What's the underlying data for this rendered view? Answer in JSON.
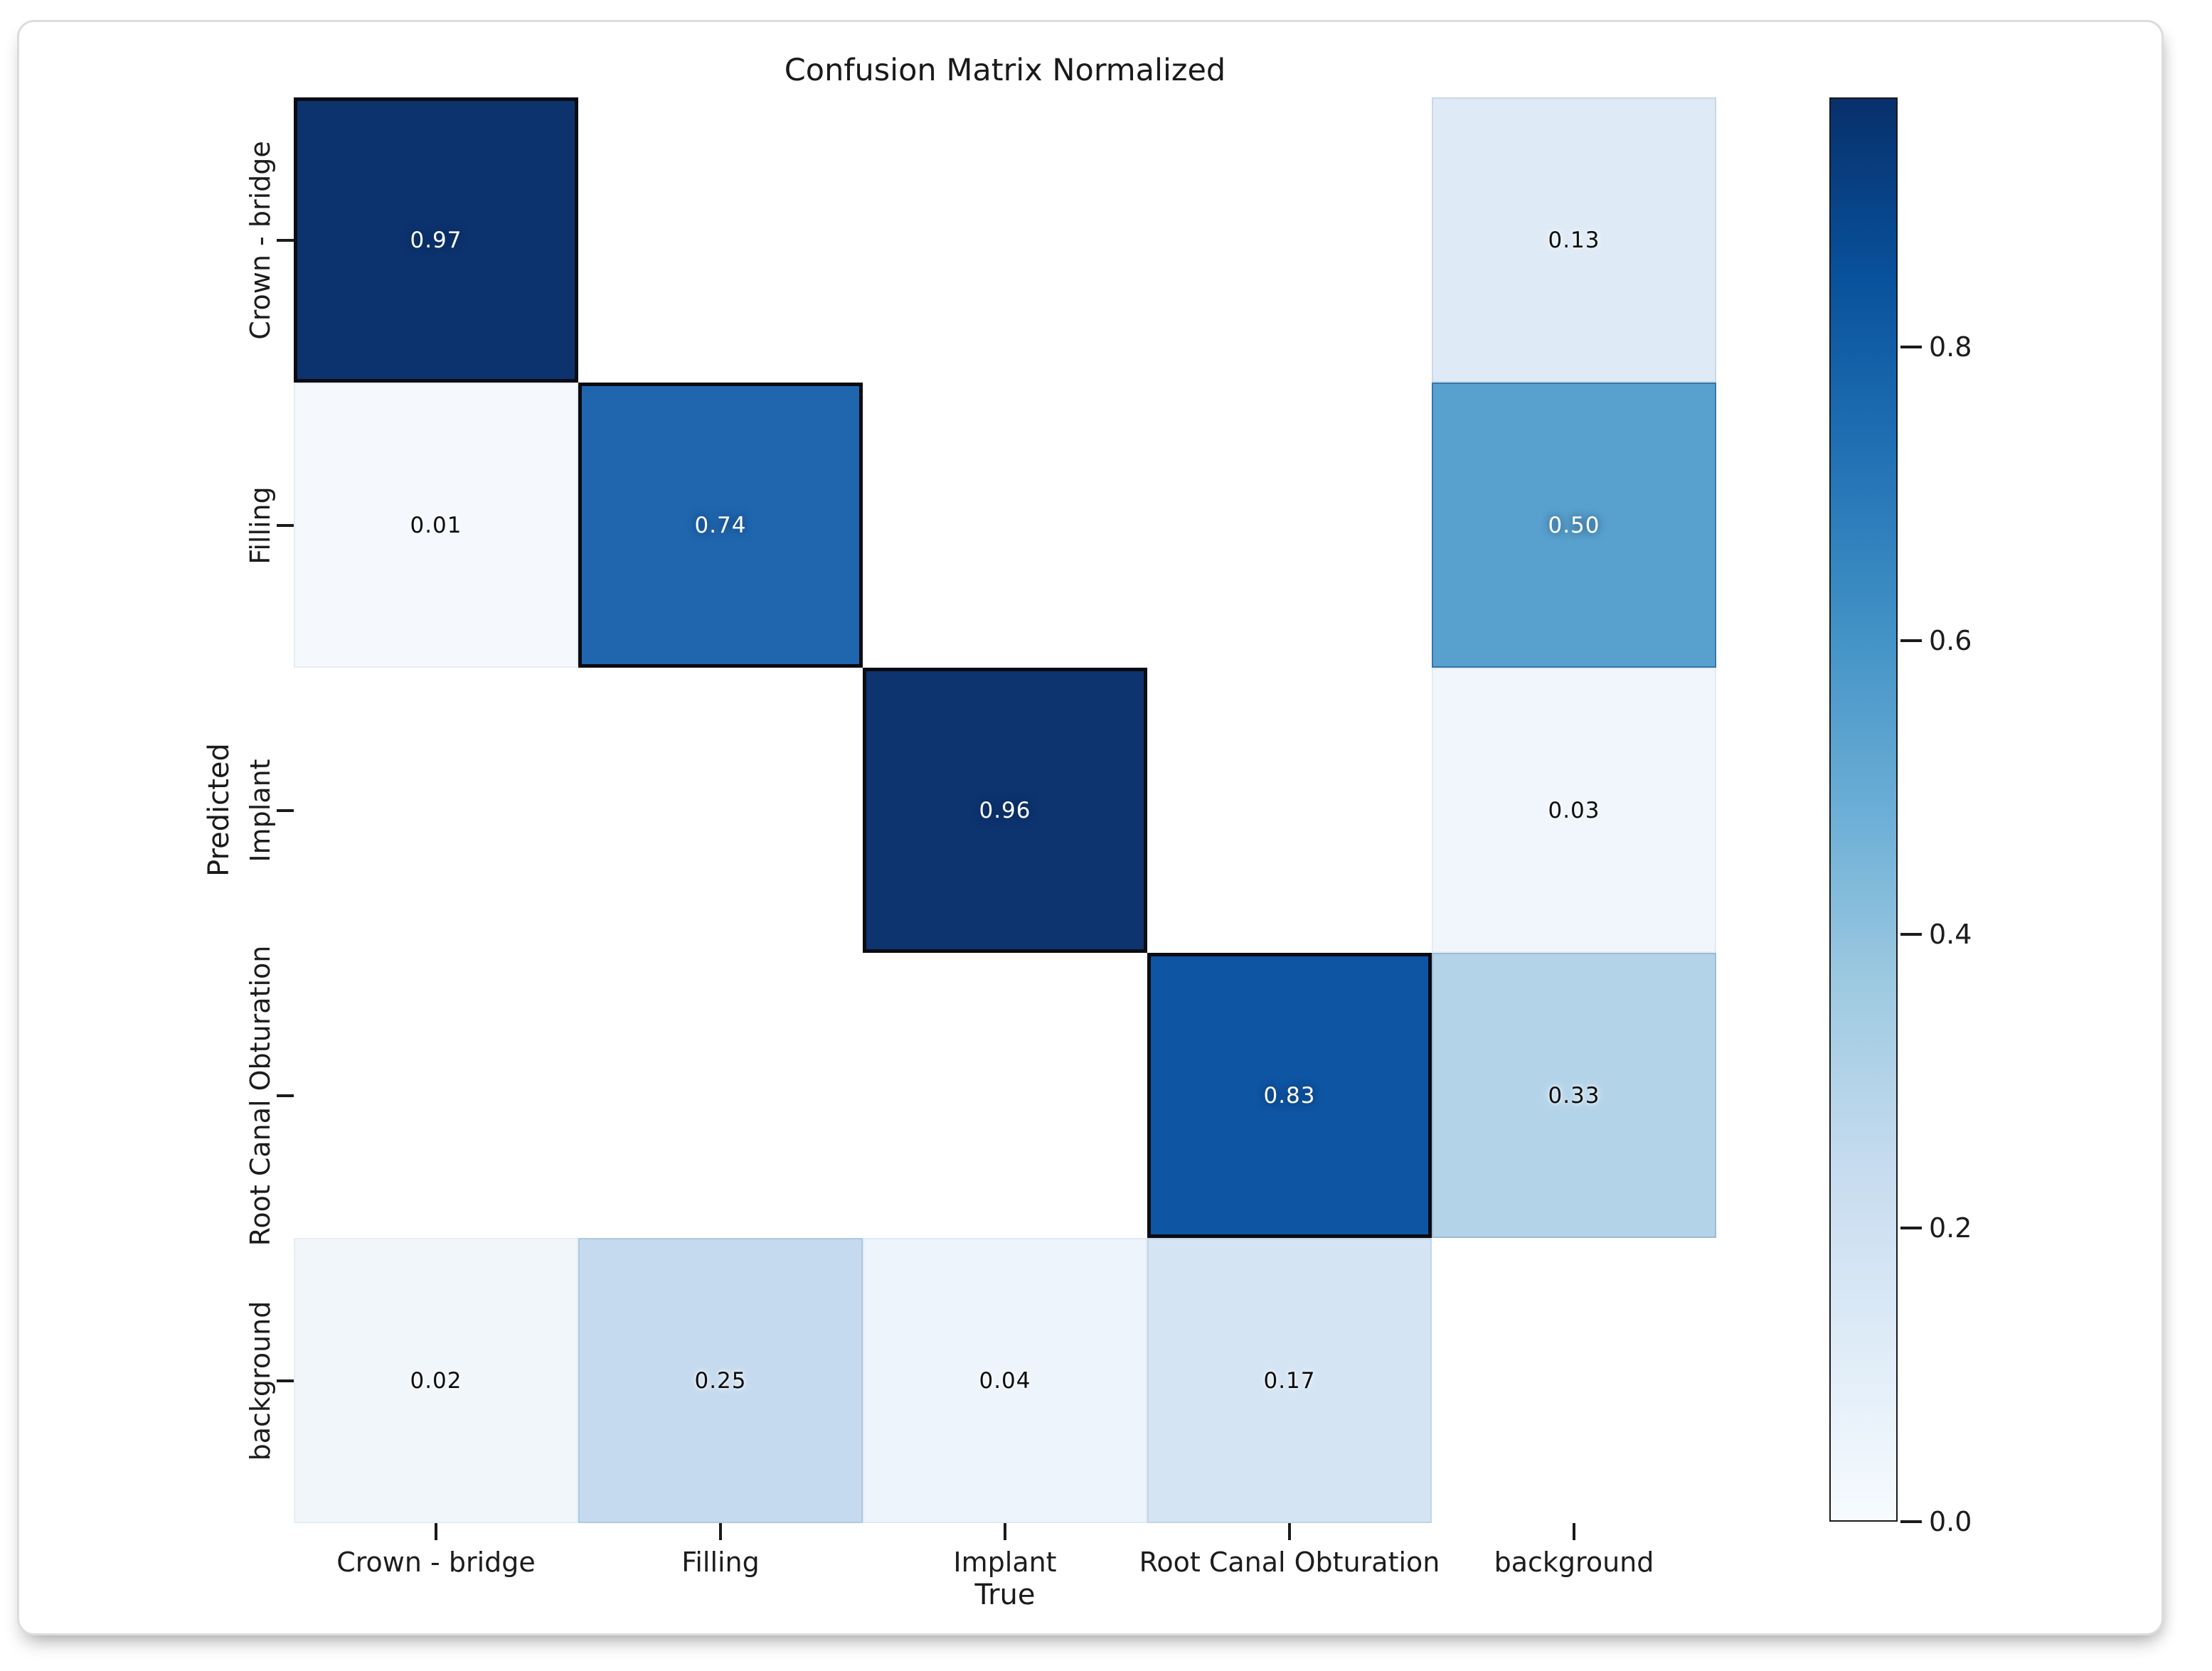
{
  "figure": {
    "frame_border_color": "#dcdcdc",
    "background": "#ffffff"
  },
  "chart_data": {
    "type": "heatmap",
    "title": "Confusion Matrix Normalized",
    "xlabel": "True",
    "ylabel": "Predicted",
    "categories": [
      "Crown - bridge",
      "Filling",
      "Implant",
      "Root Canal Obturation",
      "background"
    ],
    "matrix": [
      [
        0.97,
        null,
        null,
        null,
        0.13
      ],
      [
        0.01,
        0.74,
        null,
        null,
        0.5
      ],
      [
        null,
        null,
        0.96,
        null,
        0.03
      ],
      [
        null,
        null,
        null,
        0.83,
        0.33
      ],
      [
        0.02,
        0.25,
        0.04,
        0.17,
        null
      ]
    ],
    "cells": [
      {
        "row": 0,
        "col": 0,
        "label": "0.97",
        "fill": "#0c336e",
        "text": "#ffffff",
        "diag": true
      },
      {
        "row": 0,
        "col": 4,
        "label": "0.13",
        "fill": "#deeaf6",
        "border": "#c9d8e6",
        "text": "#0d0d0d",
        "diag": false
      },
      {
        "row": 1,
        "col": 0,
        "label": "0.01",
        "fill": "#f5f9fd",
        "border": "#e4ecf3",
        "text": "#0d0d0d",
        "diag": false
      },
      {
        "row": 1,
        "col": 1,
        "label": "0.74",
        "fill": "#1f66af",
        "text": "#ffffff",
        "diag": true
      },
      {
        "row": 1,
        "col": 4,
        "label": "0.50",
        "fill": "#58a1ce",
        "border": "#3576ab",
        "text": "#ffffff",
        "diag": false
      },
      {
        "row": 2,
        "col": 2,
        "label": "0.96",
        "fill": "#0d346f",
        "text": "#ffffff",
        "diag": true
      },
      {
        "row": 2,
        "col": 4,
        "label": "0.03",
        "fill": "#f0f6fc",
        "border": "#e4ecf3",
        "text": "#0d0d0d",
        "diag": false
      },
      {
        "row": 3,
        "col": 3,
        "label": "0.83",
        "fill": "#0e55a3",
        "text": "#ffffff",
        "diag": true
      },
      {
        "row": 3,
        "col": 4,
        "label": "0.33",
        "fill": "#b3d3e8",
        "border": "#9fbcd3",
        "text": "#0d0d0d",
        "diag": false
      },
      {
        "row": 4,
        "col": 0,
        "label": "0.02",
        "fill": "#f1f6fb",
        "border": "#e6edf4",
        "text": "#0d0d0d",
        "diag": false
      },
      {
        "row": 4,
        "col": 1,
        "label": "0.25",
        "fill": "#c5daee",
        "border": "#b0c9e0",
        "text": "#0d0d0d",
        "diag": false
      },
      {
        "row": 4,
        "col": 2,
        "label": "0.04",
        "fill": "#edf4fb",
        "border": "#e2eaf2",
        "text": "#0d0d0d",
        "diag": false
      },
      {
        "row": 4,
        "col": 3,
        "label": "0.17",
        "fill": "#d4e4f3",
        "border": "#c2d5e6",
        "text": "#0d0d0d",
        "diag": false
      }
    ],
    "colorbar": {
      "vmin": 0.0,
      "vmax": 0.97,
      "ticks": [
        {
          "label": "0.8",
          "value": 0.8
        },
        {
          "label": "0.6",
          "value": 0.6
        },
        {
          "label": "0.4",
          "value": 0.4
        },
        {
          "label": "0.2",
          "value": 0.2
        },
        {
          "label": "0.0",
          "value": 0.0
        }
      ],
      "gradient": [
        "#f7fbff",
        "#deebf7",
        "#c6dbef",
        "#9ecae1",
        "#6baed6",
        "#4292c6",
        "#2171b5",
        "#08519c",
        "#08306b"
      ]
    },
    "colors": {
      "diag_border": "#0b0b12",
      "text_dark": "#0d0d0d",
      "text_light": "#ffffff",
      "tick_color": "#1a1a1a"
    },
    "layout": {
      "legend": "colorbar-right",
      "grid": "off"
    }
  }
}
